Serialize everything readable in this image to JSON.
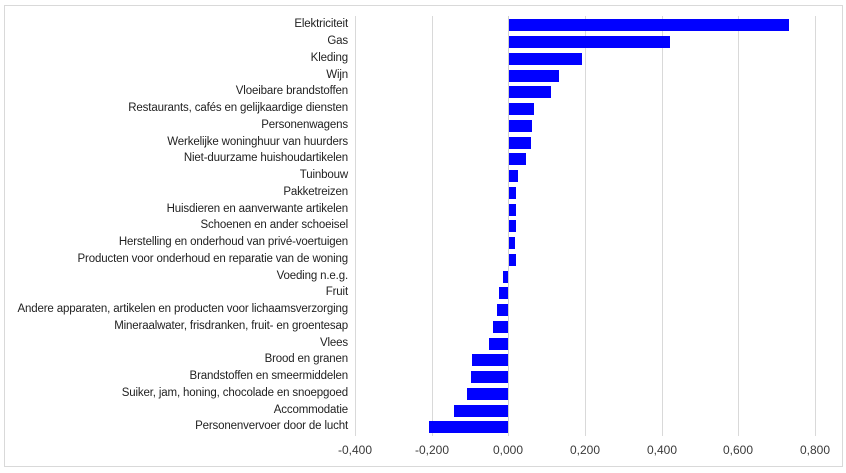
{
  "chart_data": {
    "type": "bar",
    "orientation": "horizontal",
    "title": "",
    "xlabel": "",
    "ylabel": "",
    "xlim": [
      -0.4,
      0.8
    ],
    "grid": true,
    "legend": false,
    "bar_color": "#0101ff",
    "gridline_color": "#d9d9d9",
    "frame_color": "#d9d9d9",
    "categories": [
      "Elektriciteit",
      "Gas",
      "Kleding",
      "Wijn",
      "Vloeibare brandstoffen",
      "Restaurants, cafés en gelijkaardige diensten",
      "Personenwagens",
      "Werkelijke woninghuur van huurders",
      "Niet-duurzame huishoudartikelen",
      "Tuinbouw",
      "Pakketreizen",
      "Huisdieren en aanverwante artikelen",
      "Schoenen en ander schoeisel",
      "Herstelling en onderhoud van privé-voertuigen",
      "Producten voor onderhoud en reparatie van de woning",
      "Voeding n.e.g.",
      "Fruit",
      "Andere apparaten, artikelen en producten voor lichaamsverzorging",
      "Mineraalwater, frisdranken, fruit- en groentesap",
      "Vlees",
      "Brood en granen",
      "Brandstoffen en smeermiddelen",
      "Suiker, jam, honing, chocolade en snoepgoed",
      "Accommodatie",
      "Personenvervoer door de lucht"
    ],
    "values": [
      0.73,
      0.42,
      0.19,
      0.13,
      0.11,
      0.065,
      0.06,
      0.057,
      0.046,
      0.024,
      0.02,
      0.018,
      0.018,
      0.017,
      0.018,
      -0.015,
      -0.024,
      -0.03,
      -0.04,
      -0.05,
      -0.094,
      -0.097,
      -0.108,
      -0.142,
      -0.206
    ],
    "xticks": [
      -0.4,
      -0.2,
      0.0,
      0.2,
      0.4,
      0.6,
      0.8
    ],
    "xtick_labels": [
      "-0,400",
      "-0,200",
      "0,000",
      "0,200",
      "0,400",
      "0,600",
      "0,800"
    ]
  }
}
